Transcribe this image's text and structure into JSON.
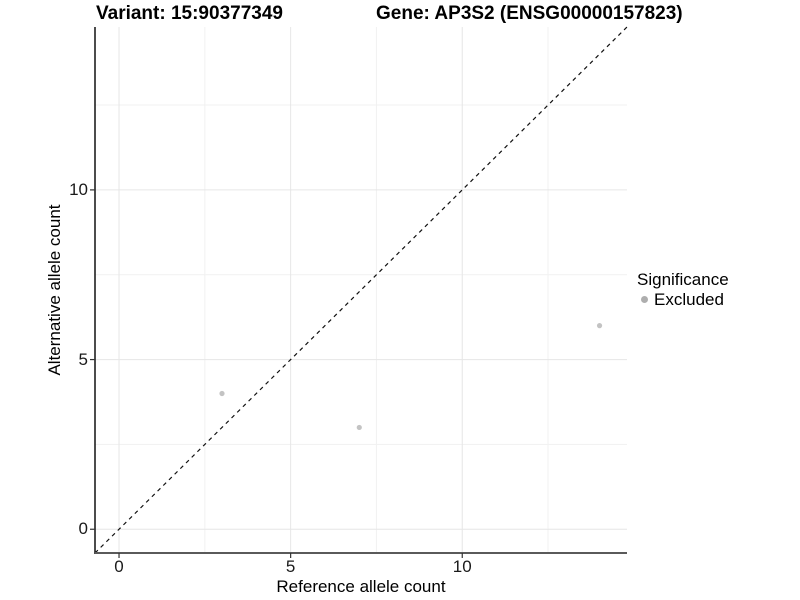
{
  "titles": {
    "variant": "Variant: 15:90377349",
    "gene": "Gene: AP3S2 (ENSG00000157823)"
  },
  "chart_data": {
    "type": "scatter",
    "xlabel": "Reference allele count",
    "ylabel": "Alternative allele count",
    "xlim": [
      -0.7,
      14.8
    ],
    "ylim": [
      -0.7,
      14.8
    ],
    "x_major_ticks": [
      0,
      5,
      10
    ],
    "y_major_ticks": [
      0,
      5,
      10
    ],
    "x_minor_ticks": [
      2.5,
      7.5,
      12.5
    ],
    "y_minor_ticks": [
      2.5,
      7.5,
      12.5
    ],
    "grid": true,
    "points": [
      {
        "x": 3,
        "y": 4,
        "series": "Excluded"
      },
      {
        "x": 7,
        "y": 3,
        "series": "Excluded"
      },
      {
        "x": 14,
        "y": 6,
        "series": "Excluded"
      }
    ],
    "point_color": "#c3c3c3",
    "reference_line": {
      "equation": "y = x",
      "style": "dashed",
      "color": "#111111"
    },
    "legend": {
      "title": "Significance",
      "position": "right",
      "items": [
        {
          "label": "Excluded",
          "color": "#aeaeae"
        }
      ]
    },
    "colors": {
      "major_grid": "#e6e6e6",
      "minor_grid": "#f1f1f1",
      "y_axis_line": "#000000",
      "x_axis_line": "#5a5a5a",
      "tick_mark": "#333333"
    }
  }
}
